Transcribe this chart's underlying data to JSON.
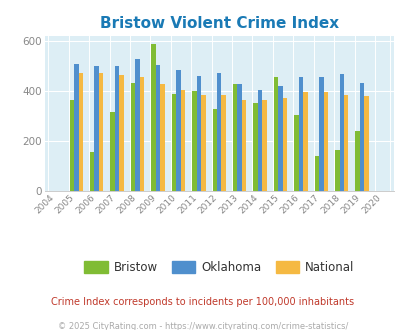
{
  "title": "Bristow Violent Crime Index",
  "years": [
    2004,
    2005,
    2006,
    2007,
    2008,
    2009,
    2010,
    2011,
    2012,
    2013,
    2014,
    2015,
    2016,
    2017,
    2018,
    2019,
    2020
  ],
  "bristow": [
    0,
    365,
    158,
    318,
    435,
    590,
    390,
    400,
    328,
    428,
    355,
    458,
    305,
    140,
    165,
    242,
    0
  ],
  "oklahoma": [
    0,
    510,
    500,
    500,
    528,
    505,
    485,
    460,
    473,
    430,
    406,
    420,
    456,
    458,
    468,
    432,
    0
  ],
  "national": [
    0,
    472,
    472,
    467,
    458,
    430,
    405,
    387,
    387,
    365,
    365,
    375,
    398,
    396,
    384,
    380,
    0
  ],
  "bar_colors": {
    "bristow": "#80bc34",
    "oklahoma": "#4f8fcd",
    "national": "#f5b942"
  },
  "ylim": [
    0,
    620
  ],
  "yticks": [
    0,
    200,
    400,
    600
  ],
  "subtitle": "Crime Index corresponds to incidents per 100,000 inhabitants",
  "footer": "© 2025 CityRating.com - https://www.cityrating.com/crime-statistics/",
  "title_color": "#1a7ab5",
  "subtitle_color": "#c0392b",
  "footer_color": "#aaaaaa",
  "legend_labels": [
    "Bristow",
    "Oklahoma",
    "National"
  ],
  "legend_text_color": "#333333",
  "bar_width": 0.22,
  "grid_color": "#ffffff",
  "axis_bg": "#ddeef5",
  "tick_color": "#888888",
  "spine_color": "#cccccc"
}
